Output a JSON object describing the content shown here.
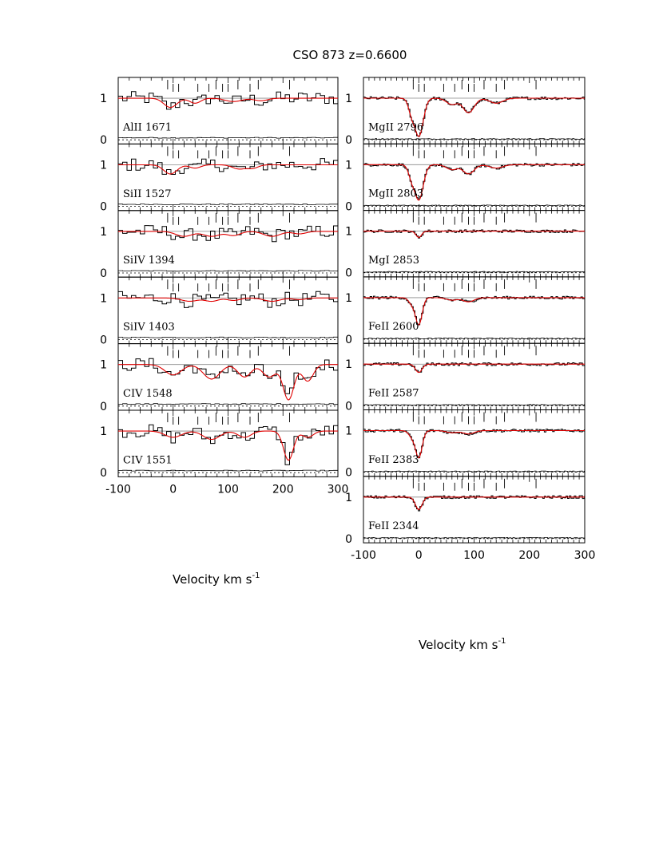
{
  "title": "CSO 873   z=0.6600",
  "xlabel": "Velocity  km  s",
  "xlabel_sup": "-1",
  "chart_data": {
    "type": "line",
    "title": "CSO 873   z=0.6600",
    "xlabel": "Velocity km s^-1",
    "xlim": [
      -100,
      300
    ],
    "ylim": [
      -0.1,
      1.5
    ],
    "xticks": [
      "-100",
      "0",
      "100",
      "200",
      "300"
    ],
    "yticks": [
      "0",
      "1"
    ],
    "grid": false,
    "colors": {
      "data": "#000000",
      "model": "#e00000",
      "continuum": "#888888"
    },
    "columns": [
      {
        "panels": [
          {
            "label": "AlII  1671",
            "model": {
              "dips": [
                [
                  -5,
                  0.22,
                  12
                ],
                [
                  40,
                  0.12,
                  10
                ],
                [
                  110,
                  0.08,
                  15
                ],
                [
                  160,
                  0.06,
                  12
                ]
              ]
            }
          },
          {
            "label": "SiII  1527",
            "model": {
              "dips": [
                [
                  -5,
                  0.22,
                  12
                ],
                [
                  40,
                  0.08,
                  10
                ],
                [
                  120,
                  0.1,
                  12
                ],
                [
                  145,
                  0.08,
                  10
                ]
              ]
            }
          },
          {
            "label": "SiIV  1394",
            "model": {
              "dips": [
                [
                  20,
                  0.12,
                  15
                ],
                [
                  70,
                  0.12,
                  15
                ],
                [
                  110,
                  0.1,
                  12
                ],
                [
                  180,
                  0.12,
                  15
                ],
                [
                  230,
                  0.06,
                  12
                ]
              ]
            }
          },
          {
            "label": "SiIV  1403",
            "model": {
              "dips": [
                [
                  30,
                  0.08,
                  15
                ],
                [
                  70,
                  0.08,
                  12
                ],
                [
                  110,
                  0.06,
                  12
                ],
                [
                  180,
                  0.08,
                  15
                ],
                [
                  230,
                  0.04,
                  12
                ]
              ]
            }
          },
          {
            "label": "CIV  1548",
            "model": {
              "dips": [
                [
                  0,
                  0.25,
                  15
                ],
                [
                  70,
                  0.35,
                  15
                ],
                [
                  130,
                  0.3,
                  12
                ],
                [
                  175,
                  0.3,
                  12
                ],
                [
                  210,
                  0.85,
                  10
                ],
                [
                  245,
                  0.4,
                  10
                ]
              ]
            }
          },
          {
            "label": "CIV  1551",
            "model": {
              "dips": [
                [
                  0,
                  0.15,
                  15
                ],
                [
                  70,
                  0.2,
                  15
                ],
                [
                  130,
                  0.15,
                  12
                ],
                [
                  210,
                  0.7,
                  9
                ],
                [
                  245,
                  0.15,
                  10
                ]
              ]
            }
          }
        ]
      },
      {
        "panels": [
          {
            "label": "MgII  2796",
            "model": {
              "dips": [
                [
                  0,
                  0.92,
                  8
                ],
                [
                  -12,
                  0.35,
                  6
                ],
                [
                  60,
                  0.15,
                  10
                ],
                [
                  90,
                  0.35,
                  10
                ],
                [
                  140,
                  0.12,
                  12
                ]
              ]
            }
          },
          {
            "label": "MgII  2803",
            "model": {
              "dips": [
                [
                  0,
                  0.85,
                  8
                ],
                [
                  -12,
                  0.3,
                  6
                ],
                [
                  60,
                  0.12,
                  10
                ],
                [
                  90,
                  0.22,
                  10
                ],
                [
                  140,
                  0.08,
                  12
                ]
              ]
            }
          },
          {
            "label": "MgI  2853",
            "model": {
              "dips": [
                [
                  0,
                  0.15,
                  5
                ]
              ]
            }
          },
          {
            "label": "FeII  2600",
            "model": {
              "dips": [
                [
                  0,
                  0.65,
                  6
                ],
                [
                  -12,
                  0.15,
                  6
                ],
                [
                  60,
                  0.06,
                  10
                ],
                [
                  90,
                  0.1,
                  10
                ]
              ]
            }
          },
          {
            "label": "FeII  2587",
            "model": {
              "dips": [
                [
                  0,
                  0.2,
                  6
                ]
              ]
            }
          },
          {
            "label": "FeII  2383",
            "model": {
              "dips": [
                [
                  0,
                  0.65,
                  6
                ],
                [
                  -12,
                  0.15,
                  6
                ],
                [
                  60,
                  0.05,
                  10
                ],
                [
                  90,
                  0.08,
                  10
                ]
              ]
            }
          },
          {
            "label": "FeII  2344",
            "model": {
              "dips": [
                [
                  0,
                  0.3,
                  6
                ]
              ]
            }
          }
        ]
      }
    ],
    "component_velocities_long": [
      -10,
      78,
      118,
      155,
      212
    ],
    "component_velocities_short": [
      0,
      10,
      45,
      65,
      90,
      100,
      140
    ]
  }
}
